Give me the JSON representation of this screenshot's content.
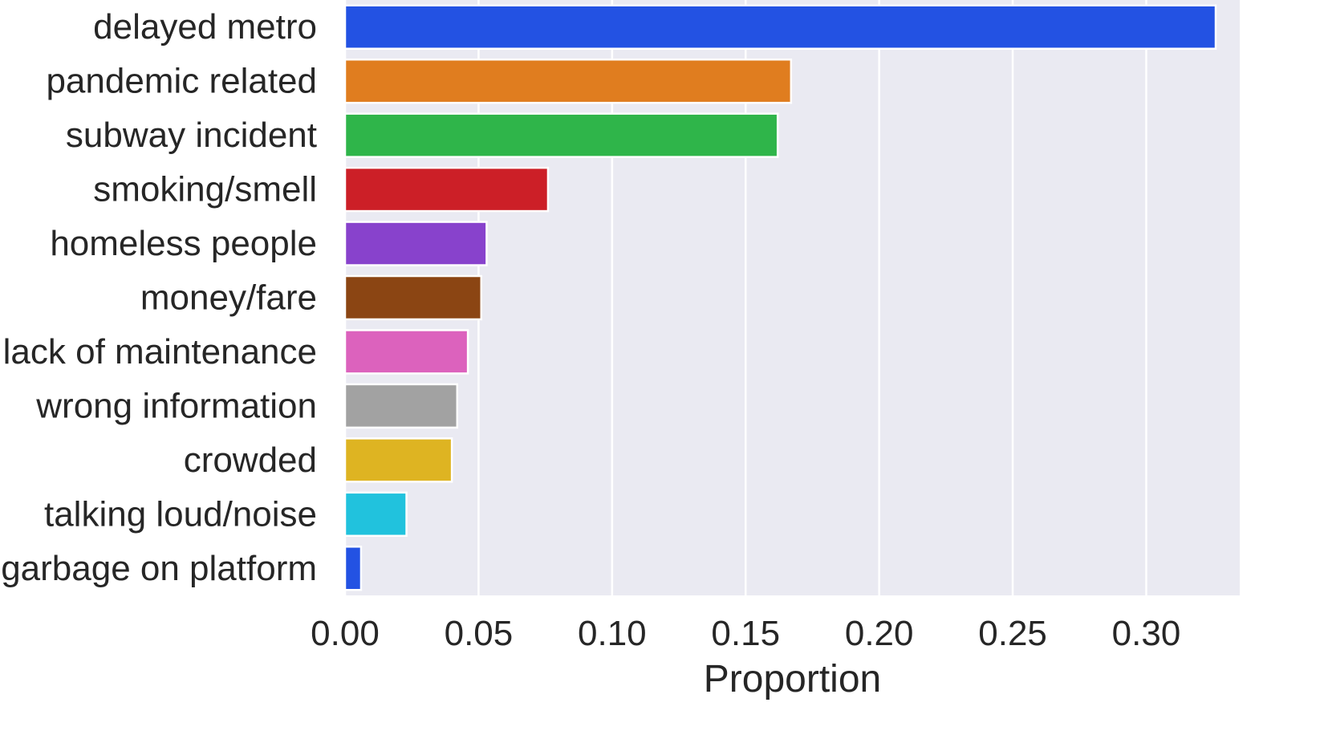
{
  "chart_data": {
    "type": "bar",
    "orientation": "horizontal",
    "title": "",
    "xlabel": "Proportion",
    "ylabel": "",
    "xlim": [
      0,
      0.335
    ],
    "xticks": [
      0.0,
      0.05,
      0.1,
      0.15,
      0.2,
      0.25,
      0.3
    ],
    "xtick_labels": [
      "0.00",
      "0.05",
      "0.10",
      "0.15",
      "0.20",
      "0.25",
      "0.30"
    ],
    "grid": true,
    "categories": [
      "delayed metro",
      "pandemic related",
      "subway incident",
      "smoking/smell",
      "homeless people",
      "money/fare",
      "lack of maintenance",
      "wrong information",
      "crowded",
      "talking loud/noise",
      "garbage on platform"
    ],
    "values": [
      0.326,
      0.167,
      0.162,
      0.076,
      0.053,
      0.051,
      0.046,
      0.042,
      0.04,
      0.023,
      0.006
    ],
    "colors": [
      "#2352e3",
      "#e07d1f",
      "#2fb54a",
      "#cc1f27",
      "#8842cc",
      "#8b4513",
      "#dc62bd",
      "#a2a2a2",
      "#deb422",
      "#21c2dd",
      "#2352e3"
    ],
    "plot_background": "#eaeaf2",
    "grid_color": "#ffffff"
  }
}
